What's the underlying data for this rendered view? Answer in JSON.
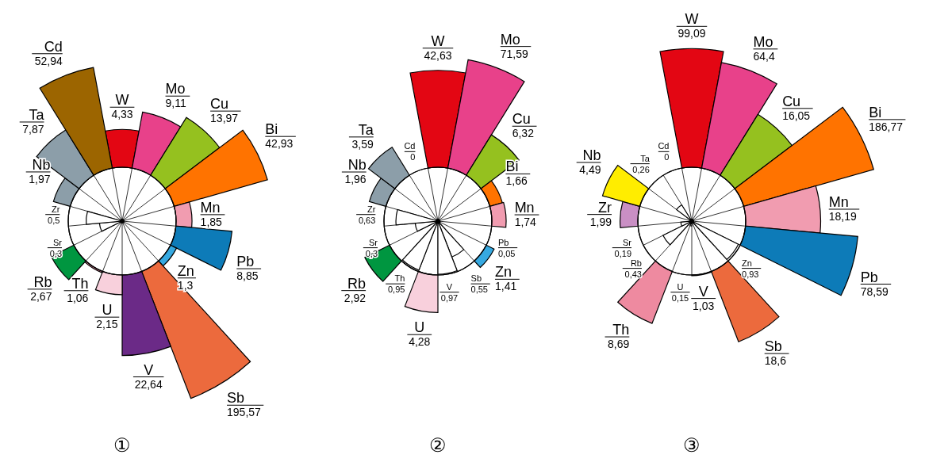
{
  "chart_data": [
    {
      "type": "other",
      "title": "①",
      "categories": [
        "W",
        "Mo",
        "Cu",
        "Bi",
        "Mn",
        "Pb",
        "Zn",
        "Sb",
        "V",
        "U",
        "Th",
        "Rb",
        "Sr",
        "Zr",
        "Nb",
        "Ta",
        "Cd"
      ],
      "values": [
        4.33,
        9.11,
        13.97,
        42.93,
        1.85,
        8.85,
        1.3,
        195.57,
        22.64,
        2.15,
        1.06,
        2.67,
        0.3,
        0.5,
        1.97,
        7.87,
        52.94
      ],
      "value_labels": [
        "4,33",
        "9,11",
        "13,97",
        "42,93",
        "1,85",
        "8,85",
        "1,3",
        "195,57",
        "22,64",
        "2,15",
        "1,06",
        "2,67",
        "0,3",
        "0,5",
        "1,97",
        "7,87",
        "52,94"
      ],
      "colors": [
        "#e30613",
        "#e8418a",
        "#95c11f",
        "#ff7300",
        "#f19cb0",
        "#0d7bb8",
        "#36a9e1",
        "#ec6a3d",
        "#6b2a87",
        "#f8d0dc",
        "#ee8aa0",
        "#009640",
        "#ffffff",
        "#ffffff",
        "#8c9ea9",
        "#8c9ea9",
        "#9c6500"
      ]
    },
    {
      "type": "other",
      "title": "②",
      "categories": [
        "W",
        "Mo",
        "Cu",
        "Bi",
        "Mn",
        "Pb",
        "Zn",
        "Sb",
        "V",
        "U",
        "Th",
        "Rb",
        "Sr",
        "Zr",
        "Nb",
        "Ta",
        "Cd"
      ],
      "values": [
        42.63,
        71.59,
        6.32,
        1.66,
        1.74,
        0.05,
        1.41,
        0.55,
        0.97,
        4.28,
        0.95,
        2.92,
        0.3,
        0.63,
        1.96,
        3.59,
        0
      ],
      "value_labels": [
        "42,63",
        "71,59",
        "6,32",
        "1,66",
        "1,74",
        "0,05",
        "1,41",
        "0,55",
        "0,97",
        "4,28",
        "0,95",
        "2,92",
        "0,3",
        "0,63",
        "1,96",
        "3,59",
        "0"
      ],
      "colors": [
        "#e30613",
        "#e8418a",
        "#95c11f",
        "#ff7300",
        "#f19cb0",
        "#ffffff",
        "#36a9e1",
        "#ffffff",
        "#ffffff",
        "#f8d0dc",
        "#ffffff",
        "#009640",
        "#ffffff",
        "#ffffff",
        "#8c9ea9",
        "#8c9ea9",
        "#ffffff"
      ]
    },
    {
      "type": "other",
      "title": "③",
      "categories": [
        "W",
        "Mo",
        "Cu",
        "Bi",
        "Mn",
        "Pb",
        "Zn",
        "Sb",
        "V",
        "U",
        "Th",
        "Rb",
        "Sr",
        "Zr",
        "Nb",
        "Ta",
        "Cd"
      ],
      "values": [
        99.09,
        64.4,
        16.05,
        186.77,
        18.19,
        78.59,
        0.93,
        18.6,
        1.03,
        0.15,
        8.69,
        0.43,
        0.19,
        1.99,
        4.49,
        0.26,
        0
      ],
      "value_labels": [
        "99,09",
        "64,4",
        "16,05",
        "186,77",
        "18,19",
        "78,59",
        "0,93",
        "18,6",
        "1,03",
        "0,15",
        "8,69",
        "0,43",
        "0,19",
        "1,99",
        "4,49",
        "0,26",
        "0"
      ],
      "colors": [
        "#e30613",
        "#e8418a",
        "#95c11f",
        "#ff7300",
        "#f19cb0",
        "#0d7bb8",
        "#ffffff",
        "#ec6a3d",
        "#6b2a87",
        "#ffffff",
        "#ee8aa0",
        "#ffffff",
        "#ffffff",
        "#c98fc4",
        "#ffed00",
        "#ffffff",
        "#ffffff"
      ]
    }
  ]
}
